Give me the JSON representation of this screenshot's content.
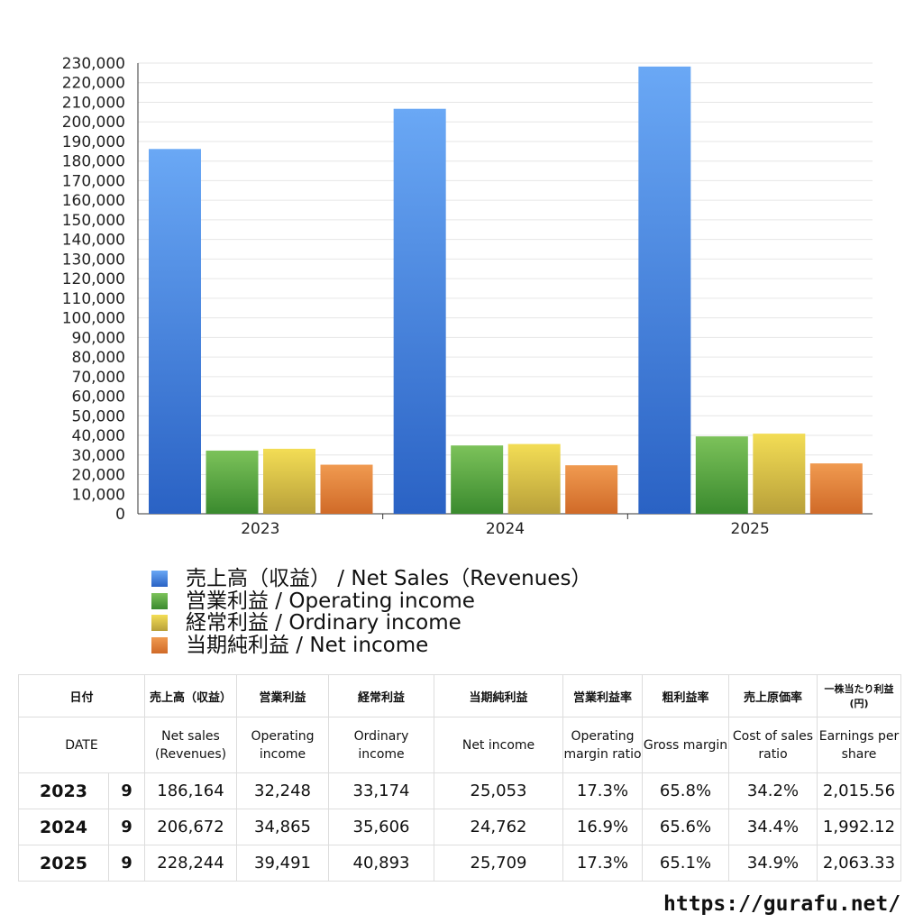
{
  "chart_data": {
    "type": "bar",
    "categories": [
      "2023",
      "2024",
      "2025"
    ],
    "series": [
      {
        "name": "売上高（収益） / Net Sales（Revenues）",
        "values": [
          186164,
          206672,
          228244
        ],
        "color": "#3b7fe0"
      },
      {
        "name": "営業利益 / Operating income",
        "values": [
          32248,
          34865,
          39491
        ],
        "color": "#4a9e3a"
      },
      {
        "name": "経常利益 / Ordinary income",
        "values": [
          33174,
          35606,
          40893
        ],
        "color": "#e0c53a"
      },
      {
        "name": "当期純利益 / Net income",
        "values": [
          25053,
          24762,
          25709
        ],
        "color": "#e07a30"
      }
    ],
    "ylim": [
      0,
      230000
    ],
    "ytick_step": 10000,
    "grid": true,
    "legend": "bottom"
  },
  "table": {
    "header_jp": [
      "日付",
      "売上高（収益）",
      "営業利益",
      "経常利益",
      "当期純利益",
      "営業利益率",
      "粗利益率",
      "売上原価率",
      "一株当たり利益(円)"
    ],
    "header_en": [
      "DATE",
      "Net sales (Revenues)",
      "Operating income",
      "Ordinary income",
      "Net income",
      "Operating margin ratio",
      "Gross margin",
      "Cost of sales ratio",
      "Earnings per share"
    ],
    "rows": [
      [
        "2023",
        "9",
        "186,164",
        "32,248",
        "33,174",
        "25,053",
        "17.3%",
        "65.8%",
        "34.2%",
        "2,015.56"
      ],
      [
        "2024",
        "9",
        "206,672",
        "34,865",
        "35,606",
        "24,762",
        "16.9%",
        "65.6%",
        "34.4%",
        "1,992.12"
      ],
      [
        "2025",
        "9",
        "228,244",
        "39,491",
        "40,893",
        "25,709",
        "17.3%",
        "65.1%",
        "34.9%",
        "2,063.33"
      ]
    ]
  },
  "footer": {
    "url": "https://gurafu.net/"
  }
}
